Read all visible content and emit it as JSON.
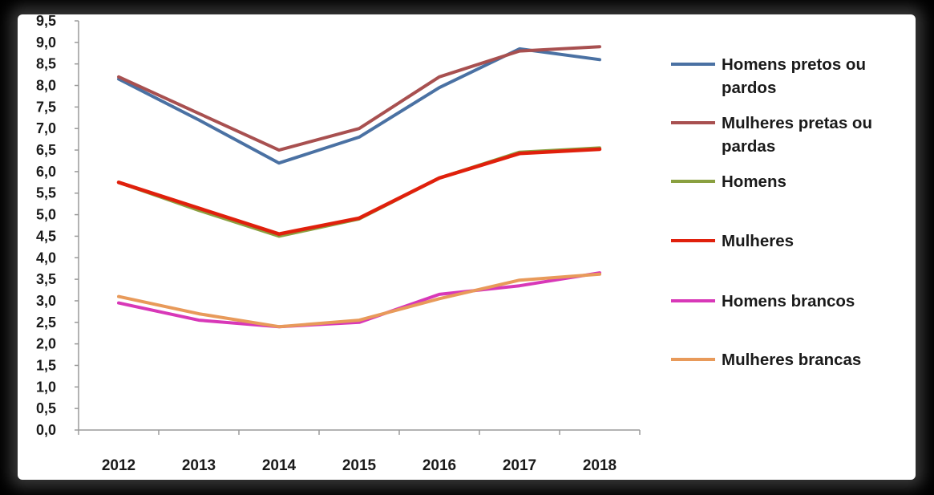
{
  "chart_data": {
    "type": "line",
    "x": [
      "2012",
      "2013",
      "2014",
      "2015",
      "2016",
      "2017",
      "2018"
    ],
    "ylim": [
      0,
      9.5
    ],
    "yticks": [
      "0,0",
      "0,5",
      "1,0",
      "1,5",
      "2,0",
      "2,5",
      "3,0",
      "3,5",
      "4,0",
      "4,5",
      "5,0",
      "5,5",
      "6,0",
      "6,5",
      "7,0",
      "7,5",
      "8,0",
      "8,5",
      "9,0",
      "9,5"
    ],
    "legend_position": "right",
    "grid": false,
    "series": [
      {
        "name": "Homens pretos ou pardos",
        "name_lines": [
          "Homens pretos ou",
          "pardos"
        ],
        "color": "#4a71a3",
        "values": [
          8.15,
          7.2,
          6.2,
          6.8,
          7.95,
          8.85,
          8.6
        ]
      },
      {
        "name": "Mulheres pretas ou pardas",
        "name_lines": [
          "Mulheres pretas ou",
          "pardas"
        ],
        "color": "#a85050",
        "values": [
          8.2,
          7.35,
          6.5,
          7.0,
          8.2,
          8.8,
          8.9
        ]
      },
      {
        "name": "Homens",
        "name_lines": [
          "Homens"
        ],
        "color": "#8aa040",
        "values": [
          5.75,
          5.1,
          4.5,
          4.9,
          5.85,
          6.45,
          6.55
        ]
      },
      {
        "name": "Mulheres",
        "name_lines": [
          "Mulheres"
        ],
        "color": "#e0200c",
        "values": [
          5.75,
          5.15,
          4.55,
          4.92,
          5.85,
          6.42,
          6.52
        ]
      },
      {
        "name": "Homens brancos",
        "name_lines": [
          "Homens brancos"
        ],
        "color": "#d838b8",
        "values": [
          2.95,
          2.55,
          2.4,
          2.5,
          3.15,
          3.35,
          3.65
        ]
      },
      {
        "name": "Mulheres brancas",
        "name_lines": [
          "Mulheres brancas"
        ],
        "color": "#e89a5a",
        "values": [
          3.1,
          2.7,
          2.4,
          2.55,
          3.05,
          3.48,
          3.62
        ]
      }
    ]
  }
}
